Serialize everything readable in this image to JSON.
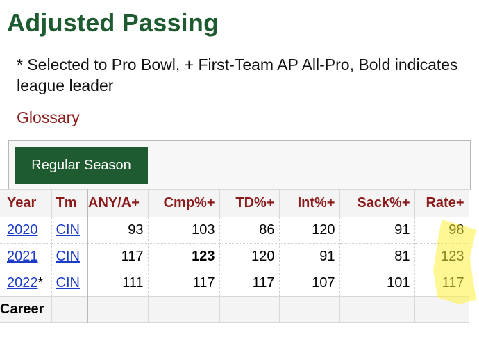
{
  "title": "Adjusted Passing",
  "note": "* Selected to Pro Bowl, + First-Team AP All-Pro, Bold indicates league leader",
  "glossary_label": "Glossary",
  "season_button": "Regular Season",
  "headers": {
    "year": "Year",
    "tm": "Tm",
    "anya": "ANY/A+",
    "cmp": "Cmp%+",
    "td": "TD%+",
    "int": "Int%+",
    "sack": "Sack%+",
    "rate": "Rate+"
  },
  "rows": [
    {
      "year": "2020",
      "star": "",
      "tm": "CIN",
      "anya": "93",
      "cmp": "103",
      "td": "86",
      "int": "120",
      "sack": "91",
      "rate": "98"
    },
    {
      "year": "2021",
      "star": "",
      "tm": "CIN",
      "anya": "117",
      "cmp": "123",
      "td": "120",
      "int": "91",
      "sack": "81",
      "rate": "123"
    },
    {
      "year": "2022",
      "star": "*",
      "tm": "CIN",
      "anya": "111",
      "cmp": "117",
      "td": "117",
      "int": "107",
      "sack": "101",
      "rate": "117"
    }
  ],
  "career_label": "Career",
  "colors": {
    "title": "#1e5b30",
    "header_text": "#8b1a1a",
    "link": "#1a3cc9",
    "button_bg": "#1e5b30",
    "highlight": "#fff03c"
  }
}
